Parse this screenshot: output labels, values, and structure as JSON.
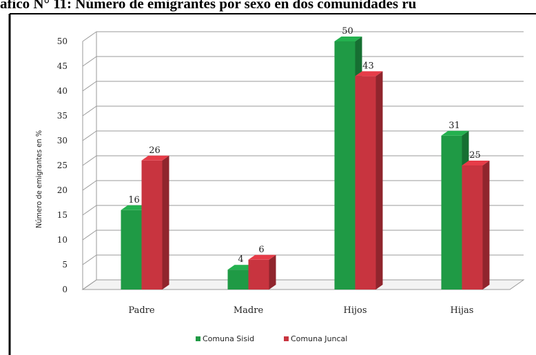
{
  "header": {
    "title": "afico N° 11: Número de emigrantes por sexo en dos comunidades ru"
  },
  "chart_data": {
    "type": "bar",
    "style": "3d-clustered-column",
    "title": "",
    "xlabel": "",
    "ylabel": "Número de emigrantes en %",
    "categories": [
      "Padre",
      "Madre",
      "Hijos",
      "Hijas"
    ],
    "ylim": [
      0,
      50
    ],
    "yticks": [
      0,
      5,
      10,
      15,
      20,
      25,
      30,
      35,
      40,
      45,
      50
    ],
    "grid": true,
    "legend_position": "bottom",
    "series": [
      {
        "name": "Comuna Sisid",
        "color": "#1f9a45",
        "values": [
          16,
          4,
          50,
          31
        ],
        "labels": [
          "16",
          "4",
          "50",
          "31"
        ]
      },
      {
        "name": "Comuna Juncal",
        "color": "#c8343f",
        "values": [
          26,
          6,
          43,
          25
        ],
        "labels": [
          "26",
          "6",
          "43",
          "25"
        ]
      }
    ]
  }
}
